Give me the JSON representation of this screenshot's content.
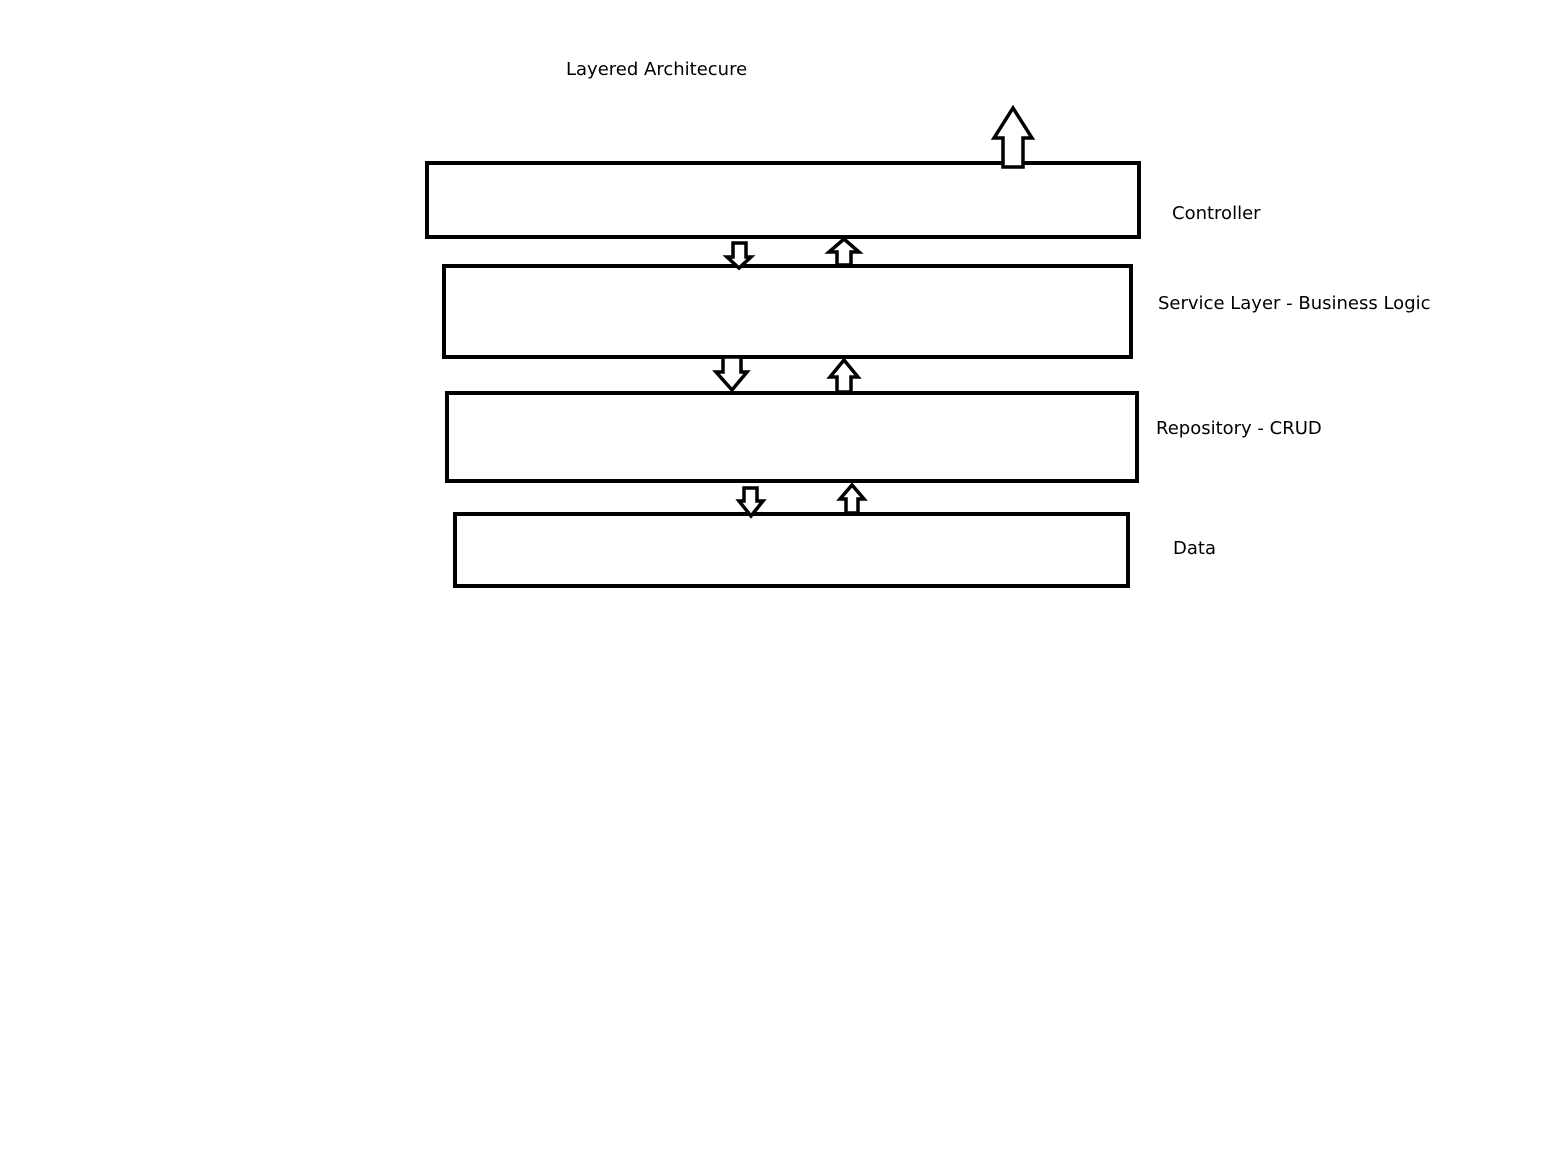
{
  "diagram": {
    "title": "Layered Architecure",
    "layers": [
      {
        "label": "Controller"
      },
      {
        "label": "Service Layer - Business Logic"
      },
      {
        "label": "Repository - CRUD"
      },
      {
        "label": "Data"
      }
    ],
    "colors": {
      "stroke": "#000000",
      "background": "#ffffff"
    }
  }
}
